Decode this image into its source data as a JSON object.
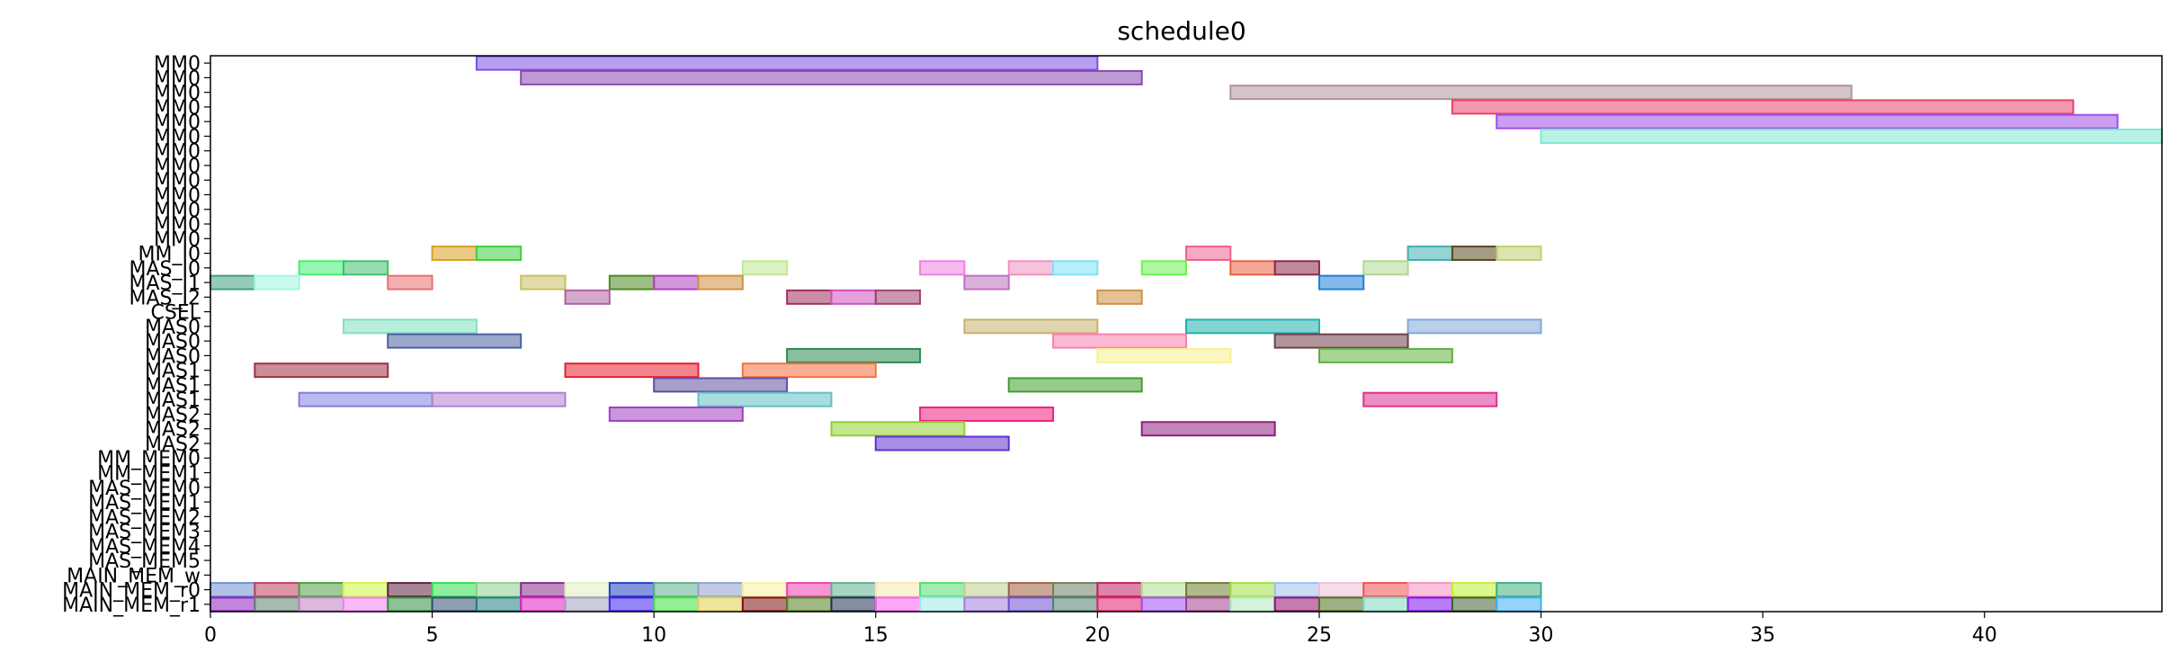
{
  "chart_data": {
    "type": "gantt",
    "title": "schedule0",
    "xlim": [
      0,
      44
    ],
    "xticks": [
      0,
      5,
      10,
      15,
      20,
      25,
      30,
      35,
      40
    ],
    "rows": [
      "MM0",
      "MM0",
      "MM0",
      "MM0",
      "MM0",
      "MM0",
      "MM0",
      "MM0",
      "MM0",
      "MM0",
      "MM0",
      "MM0",
      "MM0",
      "MM_I0",
      "MAS_I0",
      "MAS_I1",
      "MAS_I2",
      "CSEL",
      "MAS0",
      "MAS0",
      "MAS0",
      "MAS1",
      "MAS1",
      "MAS1",
      "MAS2",
      "MAS2",
      "MAS2",
      "MM_MEM0",
      "MM_MEM1",
      "MAS_MEM0",
      "MAS_MEM1",
      "MAS_MEM2",
      "MAS_MEM3",
      "MAS_MEM4",
      "MAS_MEM5",
      "MAIN_MEM_w",
      "MAIN_MEM_r0",
      "MAIN_MEM_r1"
    ],
    "bars": [
      {
        "row": 0,
        "start": 6,
        "end": 20,
        "color": "#7b4ee8"
      },
      {
        "row": 1,
        "start": 7,
        "end": 21,
        "color": "#8a48b4"
      },
      {
        "row": 2,
        "start": 23,
        "end": 37,
        "color": "#b0939e"
      },
      {
        "row": 3,
        "start": 28,
        "end": 42,
        "color": "#e8426a"
      },
      {
        "row": 4,
        "start": 29,
        "end": 43,
        "color": "#a04ee8"
      },
      {
        "row": 5,
        "start": 30,
        "end": 44,
        "color": "#7ee8d0"
      },
      {
        "row": 13,
        "start": 5,
        "end": 6,
        "color": "#d8a020"
      },
      {
        "row": 13,
        "start": 6,
        "end": 7,
        "color": "#40d040"
      },
      {
        "row": 13,
        "start": 22,
        "end": 23,
        "color": "#f06090"
      },
      {
        "row": 13,
        "start": 27,
        "end": 28,
        "color": "#40b0b0"
      },
      {
        "row": 13,
        "start": 28,
        "end": 29,
        "color": "#5a4a20"
      },
      {
        "row": 13,
        "start": 29,
        "end": 30,
        "color": "#c0d070"
      },
      {
        "row": 14,
        "start": 2,
        "end": 3,
        "color": "#40f070"
      },
      {
        "row": 14,
        "start": 3,
        "end": 4,
        "color": "#40c070"
      },
      {
        "row": 14,
        "start": 12,
        "end": 13,
        "color": "#c0e890"
      },
      {
        "row": 14,
        "start": 16,
        "end": 17,
        "color": "#f080e0"
      },
      {
        "row": 14,
        "start": 18,
        "end": 19,
        "color": "#f090c0"
      },
      {
        "row": 14,
        "start": 19,
        "end": 20,
        "color": "#80e0f8"
      },
      {
        "row": 14,
        "start": 21,
        "end": 22,
        "color": "#70f050"
      },
      {
        "row": 14,
        "start": 23,
        "end": 24,
        "color": "#e86040"
      },
      {
        "row": 14,
        "start": 24,
        "end": 25,
        "color": "#8a2a4a"
      },
      {
        "row": 14,
        "start": 26,
        "end": 27,
        "color": "#b0d890"
      },
      {
        "row": 15,
        "start": 0,
        "end": 1,
        "color": "#40a080"
      },
      {
        "row": 15,
        "start": 1,
        "end": 2,
        "color": "#a0f8e0"
      },
      {
        "row": 15,
        "start": 4,
        "end": 5,
        "color": "#e87070"
      },
      {
        "row": 15,
        "start": 7,
        "end": 8,
        "color": "#c8c060"
      },
      {
        "row": 15,
        "start": 9,
        "end": 10,
        "color": "#4a8a20"
      },
      {
        "row": 15,
        "start": 10,
        "end": 11,
        "color": "#b040c0"
      },
      {
        "row": 15,
        "start": 11,
        "end": 12,
        "color": "#d09040"
      },
      {
        "row": 15,
        "start": 17,
        "end": 18,
        "color": "#c070c0"
      },
      {
        "row": 15,
        "start": 25,
        "end": 26,
        "color": "#2080d8"
      },
      {
        "row": 16,
        "start": 8,
        "end": 9,
        "color": "#b060a0"
      },
      {
        "row": 16,
        "start": 13,
        "end": 14,
        "color": "#a03060"
      },
      {
        "row": 16,
        "start": 14,
        "end": 15,
        "color": "#d050c0"
      },
      {
        "row": 16,
        "start": 15,
        "end": 16,
        "color": "#a04070"
      },
      {
        "row": 16,
        "start": 20,
        "end": 21,
        "color": "#d09040"
      },
      {
        "row": 18,
        "start": 3,
        "end": 6,
        "color": "#80e0c0"
      },
      {
        "row": 18,
        "start": 17,
        "end": 20,
        "color": "#c8b070"
      },
      {
        "row": 18,
        "start": 22,
        "end": 25,
        "color": "#20b0b0"
      },
      {
        "row": 18,
        "start": 27,
        "end": 30,
        "color": "#80a8d8"
      },
      {
        "row": 19,
        "start": 4,
        "end": 7,
        "color": "#4a60a0"
      },
      {
        "row": 19,
        "start": 19,
        "end": 22,
        "color": "#f880b0"
      },
      {
        "row": 19,
        "start": 24,
        "end": 27,
        "color": "#704048"
      },
      {
        "row": 20,
        "start": 13,
        "end": 16,
        "color": "#2a8a50"
      },
      {
        "row": 20,
        "start": 20,
        "end": 23,
        "color": "#f8f090"
      },
      {
        "row": 20,
        "start": 25,
        "end": 28,
        "color": "#60b040"
      },
      {
        "row": 21,
        "start": 1,
        "end": 4,
        "color": "#a03040"
      },
      {
        "row": 21,
        "start": 8,
        "end": 11,
        "color": "#e82030"
      },
      {
        "row": 21,
        "start": 12,
        "end": 15,
        "color": "#f87040"
      },
      {
        "row": 22,
        "start": 10,
        "end": 13,
        "color": "#6050a0"
      },
      {
        "row": 22,
        "start": 18,
        "end": 21,
        "color": "#40a030"
      },
      {
        "row": 23,
        "start": 2,
        "end": 5,
        "color": "#8080e0"
      },
      {
        "row": 23,
        "start": 5,
        "end": 8,
        "color": "#b080d0"
      },
      {
        "row": 23,
        "start": 11,
        "end": 14,
        "color": "#60c0c8"
      },
      {
        "row": 23,
        "start": 26,
        "end": 29,
        "color": "#e03090"
      },
      {
        "row": 24,
        "start": 9,
        "end": 12,
        "color": "#a040c0"
      },
      {
        "row": 24,
        "start": 16,
        "end": 19,
        "color": "#f02080"
      },
      {
        "row": 25,
        "start": 14,
        "end": 17,
        "color": "#90d030"
      },
      {
        "row": 25,
        "start": 21,
        "end": 24,
        "color": "#902080"
      },
      {
        "row": 26,
        "start": 15,
        "end": 18,
        "color": "#6030d0"
      },
      {
        "row": 36,
        "start": 0,
        "end": 1,
        "color": "#7090d0"
      },
      {
        "row": 36,
        "start": 1,
        "end": 2,
        "color": "#c04060"
      },
      {
        "row": 36,
        "start": 2,
        "end": 3,
        "color": "#50a040"
      },
      {
        "row": 36,
        "start": 3,
        "end": 4,
        "color": "#d0f840"
      },
      {
        "row": 36,
        "start": 4,
        "end": 5,
        "color": "#602040"
      },
      {
        "row": 36,
        "start": 5,
        "end": 6,
        "color": "#30e050"
      },
      {
        "row": 36,
        "start": 6,
        "end": 7,
        "color": "#90d090"
      },
      {
        "row": 36,
        "start": 7,
        "end": 8,
        "color": "#8a2a8a"
      },
      {
        "row": 36,
        "start": 8,
        "end": 9,
        "color": "#e0f0c0"
      },
      {
        "row": 36,
        "start": 9,
        "end": 10,
        "color": "#2040c0"
      },
      {
        "row": 36,
        "start": 10,
        "end": 11,
        "color": "#60b090"
      },
      {
        "row": 36,
        "start": 11,
        "end": 12,
        "color": "#90a0d0"
      },
      {
        "row": 36,
        "start": 12,
        "end": 13,
        "color": "#f8f0a0"
      },
      {
        "row": 36,
        "start": 13,
        "end": 14,
        "color": "#f040b0"
      },
      {
        "row": 36,
        "start": 14,
        "end": 15,
        "color": "#60b090"
      },
      {
        "row": 36,
        "start": 15,
        "end": 16,
        "color": "#f8e8b0"
      },
      {
        "row": 36,
        "start": 16,
        "end": 17,
        "color": "#50e070"
      },
      {
        "row": 36,
        "start": 17,
        "end": 18,
        "color": "#c0d090"
      },
      {
        "row": 36,
        "start": 18,
        "end": 19,
        "color": "#a06040"
      },
      {
        "row": 36,
        "start": 19,
        "end": 20,
        "color": "#708060"
      },
      {
        "row": 36,
        "start": 20,
        "end": 21,
        "color": "#c02060"
      },
      {
        "row": 36,
        "start": 21,
        "end": 22,
        "color": "#b0e090"
      },
      {
        "row": 36,
        "start": 22,
        "end": 23,
        "color": "#708030"
      },
      {
        "row": 36,
        "start": 23,
        "end": 24,
        "color": "#a0e040"
      },
      {
        "row": 36,
        "start": 24,
        "end": 25,
        "color": "#a0c0f0"
      },
      {
        "row": 36,
        "start": 25,
        "end": 26,
        "color": "#f0c0d8"
      },
      {
        "row": 36,
        "start": 26,
        "end": 27,
        "color": "#f05050"
      },
      {
        "row": 36,
        "start": 27,
        "end": 28,
        "color": "#f890c0"
      },
      {
        "row": 36,
        "start": 28,
        "end": 29,
        "color": "#c0f030"
      },
      {
        "row": 36,
        "start": 29,
        "end": 30,
        "color": "#40b080"
      },
      {
        "row": 37,
        "start": 0,
        "end": 1,
        "color": "#9020c0"
      },
      {
        "row": 37,
        "start": 1,
        "end": 2,
        "color": "#608070"
      },
      {
        "row": 37,
        "start": 2,
        "end": 3,
        "color": "#c080c0"
      },
      {
        "row": 37,
        "start": 3,
        "end": 4,
        "color": "#f080f0"
      },
      {
        "row": 37,
        "start": 4,
        "end": 5,
        "color": "#309040"
      },
      {
        "row": 37,
        "start": 5,
        "end": 6,
        "color": "#305070"
      },
      {
        "row": 37,
        "start": 6,
        "end": 7,
        "color": "#208080"
      },
      {
        "row": 37,
        "start": 7,
        "end": 8,
        "color": "#e020c0"
      },
      {
        "row": 37,
        "start": 8,
        "end": 9,
        "color": "#a0a0c0"
      },
      {
        "row": 37,
        "start": 9,
        "end": 10,
        "color": "#4020f0"
      },
      {
        "row": 37,
        "start": 10,
        "end": 11,
        "color": "#40e040"
      },
      {
        "row": 37,
        "start": 11,
        "end": 12,
        "color": "#e0d050"
      },
      {
        "row": 37,
        "start": 12,
        "end": 13,
        "color": "#801010"
      },
      {
        "row": 37,
        "start": 13,
        "end": 14,
        "color": "#508020"
      },
      {
        "row": 37,
        "start": 14,
        "end": 15,
        "color": "#203050"
      },
      {
        "row": 37,
        "start": 15,
        "end": 16,
        "color": "#f860f0"
      },
      {
        "row": 37,
        "start": 16,
        "end": 17,
        "color": "#a0e8e8"
      },
      {
        "row": 37,
        "start": 17,
        "end": 18,
        "color": "#a080e0"
      },
      {
        "row": 37,
        "start": 18,
        "end": 19,
        "color": "#7050d0"
      },
      {
        "row": 37,
        "start": 19,
        "end": 20,
        "color": "#508070"
      },
      {
        "row": 37,
        "start": 20,
        "end": 21,
        "color": "#e02070"
      },
      {
        "row": 37,
        "start": 21,
        "end": 22,
        "color": "#a050f0"
      },
      {
        "row": 37,
        "start": 22,
        "end": 23,
        "color": "#a04090"
      },
      {
        "row": 37,
        "start": 23,
        "end": 24,
        "color": "#b0e8c0"
      },
      {
        "row": 37,
        "start": 24,
        "end": 25,
        "color": "#901070"
      },
      {
        "row": 37,
        "start": 25,
        "end": 26,
        "color": "#507020"
      },
      {
        "row": 37,
        "start": 26,
        "end": 27,
        "color": "#80d8c0"
      },
      {
        "row": 37,
        "start": 27,
        "end": 28,
        "color": "#8010f0"
      },
      {
        "row": 37,
        "start": 28,
        "end": 29,
        "color": "#406030"
      },
      {
        "row": 37,
        "start": 29,
        "end": 30,
        "color": "#40b0f0"
      }
    ]
  }
}
